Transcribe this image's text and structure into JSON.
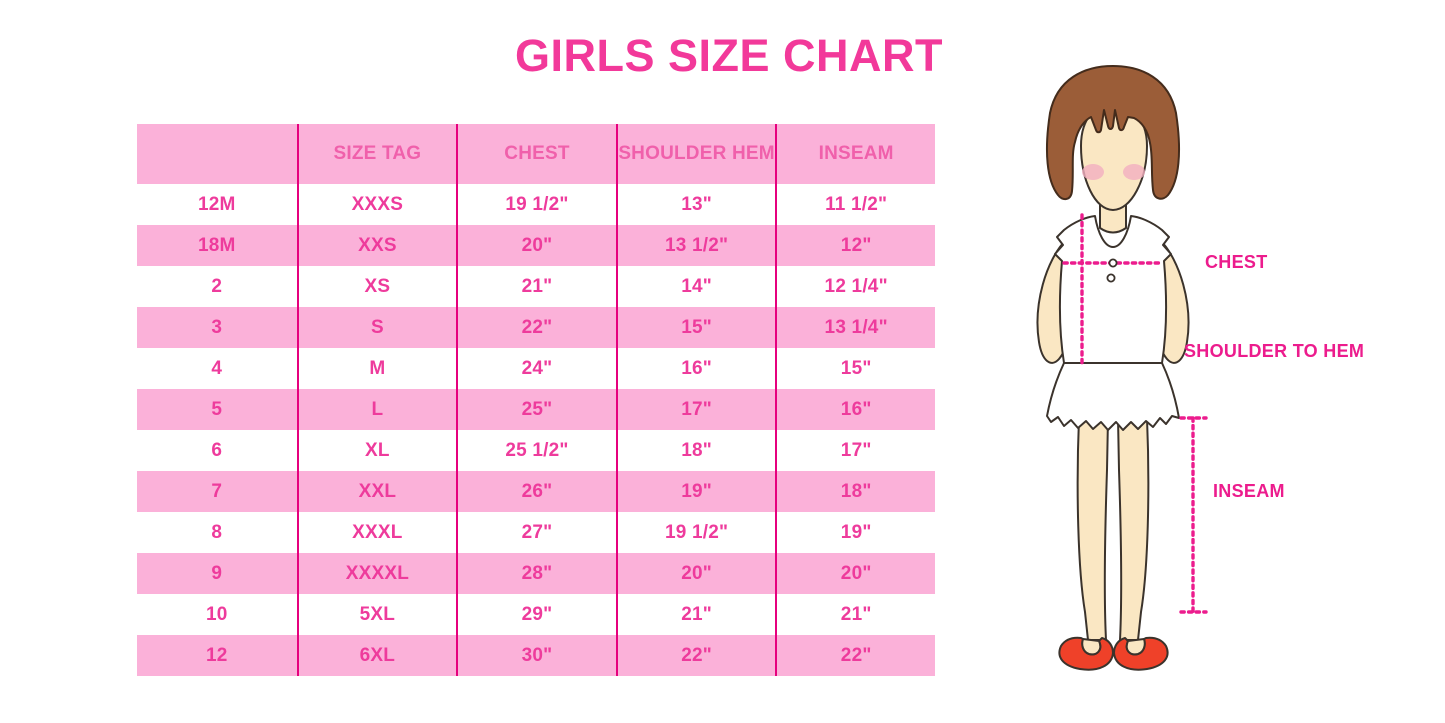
{
  "title": "GIRLS SIZE CHART",
  "table": {
    "headers": [
      "",
      "SIZE TAG",
      "CHEST",
      "SHOULDER HEM",
      "INSEAM"
    ],
    "rows": [
      [
        "12M",
        "XXXS",
        "19 1/2\"",
        "13\"",
        "11 1/2\""
      ],
      [
        "18M",
        "XXS",
        "20\"",
        "13 1/2\"",
        "12\""
      ],
      [
        "2",
        "XS",
        "21\"",
        "14\"",
        "12 1/4\""
      ],
      [
        "3",
        "S",
        "22\"",
        "15\"",
        "13 1/4\""
      ],
      [
        "4",
        "M",
        "24\"",
        "16\"",
        "15\""
      ],
      [
        "5",
        "L",
        "25\"",
        "17\"",
        "16\""
      ],
      [
        "6",
        "XL",
        "25 1/2\"",
        "18\"",
        "17\""
      ],
      [
        "7",
        "XXL",
        "26\"",
        "19\"",
        "18\""
      ],
      [
        "8",
        "XXXL",
        "27\"",
        "19 1/2\"",
        "19\""
      ],
      [
        "9",
        "XXXXL",
        "28\"",
        "20\"",
        "20\""
      ],
      [
        "10",
        "5XL",
        "29\"",
        "21\"",
        "21\""
      ],
      [
        "12",
        "6XL",
        "30\"",
        "22\"",
        "22\""
      ]
    ]
  },
  "diagram": {
    "chest_label": "CHEST",
    "shoulder_to_hem_label": "SHOULDER TO HEM",
    "inseam_label": "INSEAM"
  },
  "colors": {
    "title_text": "#F2399A",
    "row_band": "#FBB1D9",
    "grid_line": "#E6007E",
    "header_text": "#F060AB",
    "cell_text": "#EE3B9C",
    "label_text": "#EC1C8D",
    "hair": "#9B5D38",
    "skin": "#FAE7C3",
    "blush": "#F2AFC0",
    "shoe": "#EF4129"
  }
}
